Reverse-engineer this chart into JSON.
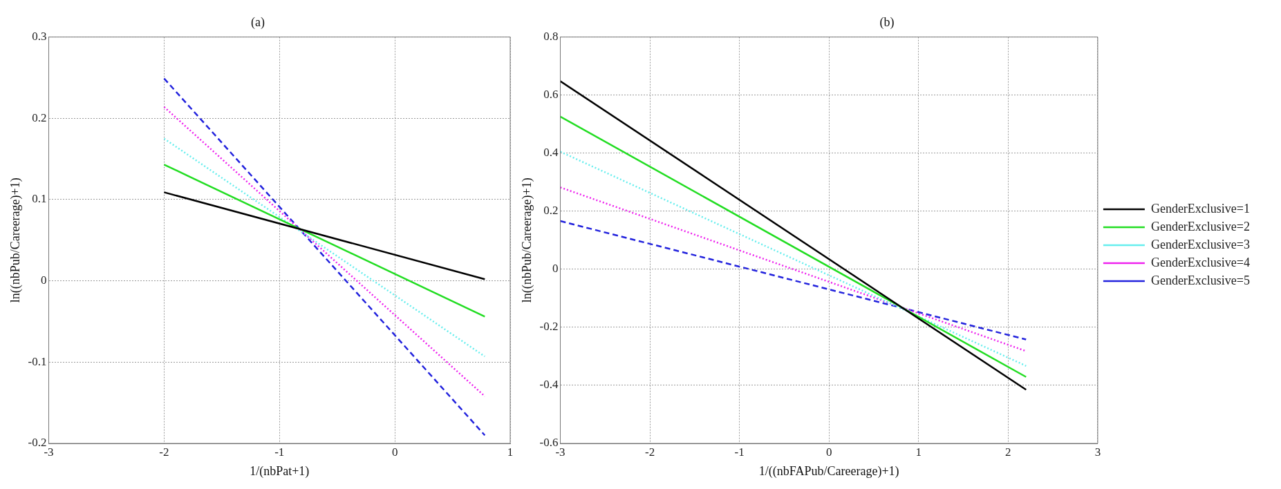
{
  "chart_data": [
    {
      "type": "line",
      "title": "(a)",
      "xlabel": "1/(nbPat+1)",
      "ylabel": "ln((nbPub/Careerage)+1)",
      "xlim": [
        -3,
        1
      ],
      "xticks": [
        -3,
        -2,
        -1,
        0,
        1
      ],
      "ylim": [
        -0.2,
        0.3
      ],
      "yticks": [
        -0.2,
        -0.1,
        0,
        0.1,
        0.2,
        0.3
      ],
      "grid": true,
      "legend": false,
      "marker": "none",
      "series": [
        {
          "color": "#000000",
          "line_style": "solid",
          "x": [
            -2,
            0.78
          ],
          "values": [
            0.109,
            0.002
          ]
        },
        {
          "color": "#22dd22",
          "line_style": "solid",
          "x": [
            -2,
            0.78
          ],
          "values": [
            0.143,
            -0.044
          ]
        },
        {
          "color": "#66eeee",
          "line_style": "dotted",
          "x": [
            -2,
            0.78
          ],
          "values": [
            0.175,
            -0.093
          ]
        },
        {
          "color": "#ee22ee",
          "line_style": "dotted",
          "x": [
            -2,
            0.78
          ],
          "values": [
            0.214,
            -0.142
          ]
        },
        {
          "color": "#2222dd",
          "line_style": "dashed",
          "x": [
            -2,
            0.78
          ],
          "values": [
            0.249,
            -0.19
          ]
        }
      ]
    },
    {
      "type": "line",
      "title": "(b)",
      "xlabel": "1/((nbFAPub/Careerage)+1)",
      "ylabel": "ln((nbPub/Careerage)+1)",
      "xlim": [
        -3,
        3
      ],
      "xticks": [
        -3,
        -2,
        -1,
        0,
        1,
        2,
        3
      ],
      "ylim": [
        -0.6,
        0.8
      ],
      "yticks": [
        -0.6,
        -0.4,
        -0.2,
        0,
        0.2,
        0.4,
        0.6,
        0.8
      ],
      "grid": true,
      "legend": "right",
      "marker": "none",
      "series": [
        {
          "name": "GenderExclusive=1",
          "color": "#000000",
          "line_style": "solid",
          "x": [
            -3,
            2.2
          ],
          "values": [
            0.648,
            -0.415
          ]
        },
        {
          "name": "GenderExclusive=2",
          "color": "#22dd22",
          "line_style": "solid",
          "x": [
            -3,
            2.2
          ],
          "values": [
            0.526,
            -0.371
          ]
        },
        {
          "name": "GenderExclusive=3",
          "color": "#66eeee",
          "line_style": "dotted",
          "x": [
            -3,
            2.2
          ],
          "values": [
            0.405,
            -0.333
          ]
        },
        {
          "name": "GenderExclusive=4",
          "color": "#ee22ee",
          "line_style": "dotted",
          "x": [
            -3,
            2.2
          ],
          "values": [
            0.282,
            -0.282
          ]
        },
        {
          "name": "GenderExclusive=5",
          "color": "#2222dd",
          "line_style": "dashed",
          "x": [
            -3,
            2.2
          ],
          "values": [
            0.166,
            -0.242
          ]
        }
      ]
    }
  ]
}
